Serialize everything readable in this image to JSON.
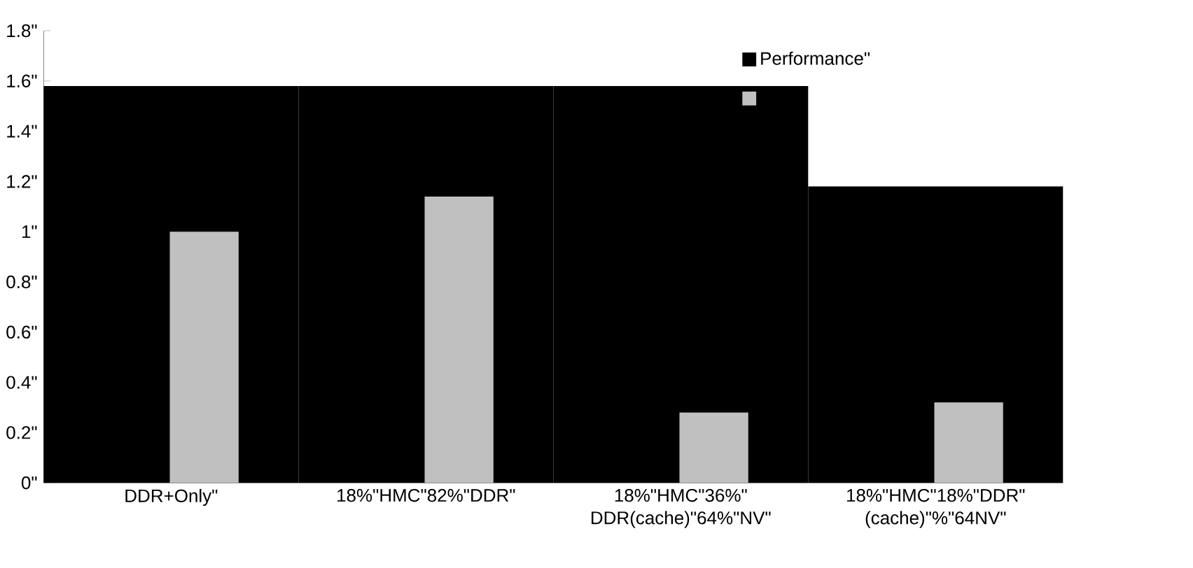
{
  "chart_data": {
    "type": "bar",
    "categories": [
      "DDR+Only\"",
      "18%\"HMC\"82%\"DDR\"",
      "18%\"HMC\"36%\" DDR(cache)\"64%\"NV\"",
      "18%\"HMC\"18%\"DDR\" (cache)\"%\"64NV\""
    ],
    "series": [
      {
        "name": "Performance\"",
        "color": "#000000",
        "values": [
          1.58,
          1.58,
          1.58,
          1.18
        ]
      },
      {
        "color": "#c0c0c0",
        "values": [
          1.0,
          1.14,
          0.28,
          0.32
        ]
      }
    ],
    "ylim": [
      0,
      1.8
    ],
    "yticks": [
      {
        "value": 0,
        "label": "0\""
      },
      {
        "value": 0.2,
        "label": "0.2\""
      },
      {
        "value": 0.4,
        "label": "0.4\""
      },
      {
        "value": 0.6,
        "label": "0.6\""
      },
      {
        "value": 0.8,
        "label": "0.8\""
      },
      {
        "value": 1,
        "label": "1\""
      },
      {
        "value": 1.2,
        "label": "1.2\""
      },
      {
        "value": 1.4,
        "label": "1.4\""
      },
      {
        "value": 1.6,
        "label": "1.6\""
      },
      {
        "value": 1.8,
        "label": "1.8\""
      }
    ],
    "grid": false,
    "legend": "top right"
  }
}
